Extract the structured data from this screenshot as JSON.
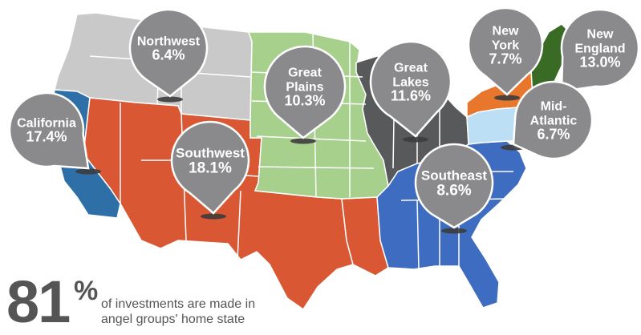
{
  "regions": [
    {
      "id": "northwest",
      "name": "Northwest",
      "value": "6.4%",
      "color": "#c9c9c9"
    },
    {
      "id": "california",
      "name": "California",
      "value": "17.4%",
      "color": "#2f6fa8"
    },
    {
      "id": "southwest",
      "name": "Southwest",
      "value": "18.1%",
      "color": "#d95732"
    },
    {
      "id": "great-plains",
      "name": "Great Plains",
      "value": "10.3%",
      "color": "#a8d08d"
    },
    {
      "id": "great-lakes",
      "name": "Great Lakes",
      "value": "11.6%",
      "color": "#58595b"
    },
    {
      "id": "southeast",
      "name": "Southeast",
      "value": "8.6%",
      "color": "#3d6cc0"
    },
    {
      "id": "new-york",
      "name": "New York",
      "value": "7.7%",
      "color": "#e8762c"
    },
    {
      "id": "new-england",
      "name": "New England",
      "value": "13.0%",
      "color": "#3a6b24"
    },
    {
      "id": "mid-atlantic",
      "name": "Mid-Atlantic",
      "value": "6.7%",
      "color": "#bcdff5"
    }
  ],
  "pins": [
    {
      "region": "northwest",
      "lines": [
        "Northwest",
        "6.4%"
      ]
    },
    {
      "region": "california",
      "lines": [
        "California",
        "17.4%"
      ]
    },
    {
      "region": "southwest",
      "lines": [
        "Southwest",
        "18.1%"
      ]
    },
    {
      "region": "great-plains",
      "lines": [
        "Great",
        "Plains",
        "10.3%"
      ]
    },
    {
      "region": "great-lakes",
      "lines": [
        "Great",
        "Lakes",
        "11.6%"
      ]
    },
    {
      "region": "southeast",
      "lines": [
        "Southeast",
        "8.6%"
      ]
    },
    {
      "region": "new-york",
      "lines": [
        "New",
        "York",
        "7.7%"
      ]
    },
    {
      "region": "new-england",
      "lines": [
        "New",
        "England",
        "13.0%"
      ]
    },
    {
      "region": "mid-atlantic",
      "lines": [
        "Mid-",
        "Atlantic",
        "6.7%"
      ]
    }
  ],
  "pin_color": "#8a8a8c",
  "stat": {
    "number": "81",
    "symbol": "%",
    "caption_line1": "of investments are made in",
    "caption_line2": "angel groups' home state"
  }
}
